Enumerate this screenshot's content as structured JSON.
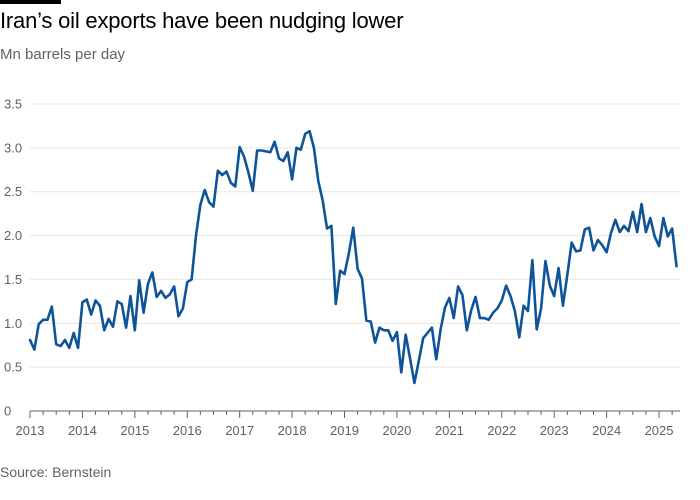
{
  "header": {
    "title": "Iran’s oil exports have been nudging lower",
    "subtitle": "Mn barrels per day"
  },
  "footer": {
    "source": "Source: Bernstein"
  },
  "chart_data": {
    "type": "line",
    "title": "Iran’s oil exports have been nudging lower",
    "subtitle": "Mn barrels per day",
    "xlabel": "",
    "ylabel": "Mn barrels per day",
    "ylim": [
      0,
      3.5
    ],
    "xlim": [
      2013,
      2025.4
    ],
    "yticks": [
      0,
      0.5,
      1.0,
      1.5,
      2.0,
      2.5,
      3.0,
      3.5
    ],
    "ytick_labels": [
      "0",
      "0.5",
      "1.0",
      "1.5",
      "2.0",
      "2.5",
      "3.0",
      "3.5"
    ],
    "xticks": [
      2013,
      2014,
      2015,
      2016,
      2017,
      2018,
      2019,
      2020,
      2021,
      2022,
      2023,
      2024,
      2025
    ],
    "xtick_labels": [
      "2013",
      "2014",
      "2015",
      "2016",
      "2017",
      "2018",
      "2019",
      "2020",
      "2021",
      "2022",
      "2023",
      "2024",
      "2025"
    ],
    "grid": "horizontal",
    "legend": "none",
    "line_color": "#0f5499",
    "series": [
      {
        "name": "",
        "x": [
          "2013-01",
          "2013-02",
          "2013-03",
          "2013-04",
          "2013-05",
          "2013-06",
          "2013-07",
          "2013-08",
          "2013-09",
          "2013-10",
          "2013-11",
          "2013-12",
          "2014-01",
          "2014-02",
          "2014-03",
          "2014-04",
          "2014-05",
          "2014-06",
          "2014-07",
          "2014-08",
          "2014-09",
          "2014-10",
          "2014-11",
          "2014-12",
          "2015-01",
          "2015-02",
          "2015-03",
          "2015-04",
          "2015-05",
          "2015-06",
          "2015-07",
          "2015-08",
          "2015-09",
          "2015-10",
          "2015-11",
          "2015-12",
          "2016-01",
          "2016-02",
          "2016-03",
          "2016-04",
          "2016-05",
          "2016-06",
          "2016-07",
          "2016-08",
          "2016-09",
          "2016-10",
          "2016-11",
          "2016-12",
          "2017-01",
          "2017-02",
          "2017-03",
          "2017-04",
          "2017-05",
          "2017-06",
          "2017-07",
          "2017-08",
          "2017-09",
          "2017-10",
          "2017-11",
          "2017-12",
          "2018-01",
          "2018-02",
          "2018-03",
          "2018-04",
          "2018-05",
          "2018-06",
          "2018-07",
          "2018-08",
          "2018-09",
          "2018-10",
          "2018-11",
          "2018-12",
          "2019-01",
          "2019-02",
          "2019-03",
          "2019-04",
          "2019-05",
          "2019-06",
          "2019-07",
          "2019-08",
          "2019-09",
          "2019-10",
          "2019-11",
          "2019-12",
          "2020-01",
          "2020-02",
          "2020-03",
          "2020-04",
          "2020-05",
          "2020-06",
          "2020-07",
          "2020-08",
          "2020-09",
          "2020-10",
          "2020-11",
          "2020-12",
          "2021-01",
          "2021-02",
          "2021-03",
          "2021-04",
          "2021-05",
          "2021-06",
          "2021-07",
          "2021-08",
          "2021-09",
          "2021-10",
          "2021-11",
          "2021-12",
          "2022-01",
          "2022-02",
          "2022-03",
          "2022-04",
          "2022-05",
          "2022-06",
          "2022-07",
          "2022-08",
          "2022-09",
          "2022-10",
          "2022-11",
          "2022-12",
          "2023-01",
          "2023-02",
          "2023-03",
          "2023-04",
          "2023-05",
          "2023-06",
          "2023-07",
          "2023-08",
          "2023-09",
          "2023-10",
          "2023-11",
          "2023-12",
          "2024-01",
          "2024-02",
          "2024-03",
          "2024-04",
          "2024-05",
          "2024-06",
          "2024-07",
          "2024-08",
          "2024-09",
          "2024-10",
          "2024-11",
          "2024-12",
          "2025-01",
          "2025-02",
          "2025-03",
          "2025-04",
          "2025-05"
        ],
        "values": [
          0.81,
          0.7,
          0.99,
          1.04,
          1.04,
          1.19,
          0.76,
          0.74,
          0.81,
          0.72,
          0.89,
          0.72,
          1.24,
          1.27,
          1.1,
          1.26,
          1.2,
          0.92,
          1.05,
          0.96,
          1.25,
          1.22,
          0.95,
          1.31,
          0.92,
          1.49,
          1.12,
          1.45,
          1.58,
          1.3,
          1.37,
          1.29,
          1.33,
          1.42,
          1.08,
          1.17,
          1.47,
          1.5,
          2.0,
          2.35,
          2.52,
          2.38,
          2.33,
          2.74,
          2.69,
          2.73,
          2.6,
          2.56,
          3.01,
          2.9,
          2.72,
          2.51,
          2.97,
          2.97,
          2.96,
          2.95,
          3.07,
          2.88,
          2.85,
          2.95,
          2.64,
          3.0,
          2.98,
          3.16,
          3.19,
          3.0,
          2.62,
          2.4,
          2.08,
          2.11,
          1.22,
          1.6,
          1.56,
          1.8,
          2.09,
          1.62,
          1.51,
          1.03,
          1.02,
          0.78,
          0.95,
          0.92,
          0.92,
          0.8,
          0.9,
          0.44,
          0.87,
          0.6,
          0.32,
          0.57,
          0.83,
          0.89,
          0.95,
          0.59,
          0.93,
          1.18,
          1.29,
          1.06,
          1.42,
          1.32,
          0.92,
          1.15,
          1.3,
          1.06,
          1.06,
          1.04,
          1.12,
          1.17,
          1.26,
          1.43,
          1.31,
          1.14,
          0.84,
          1.2,
          1.14,
          1.72,
          0.93,
          1.17,
          1.71,
          1.43,
          1.31,
          1.63,
          1.2,
          1.55,
          1.92,
          1.82,
          1.83,
          2.07,
          2.09,
          1.83,
          1.95,
          1.89,
          1.81,
          2.03,
          2.18,
          2.04,
          2.11,
          2.05,
          2.27,
          2.04,
          2.36,
          2.04,
          2.2,
          1.99,
          1.88,
          2.2,
          1.99,
          2.08,
          1.65
        ]
      }
    ]
  }
}
